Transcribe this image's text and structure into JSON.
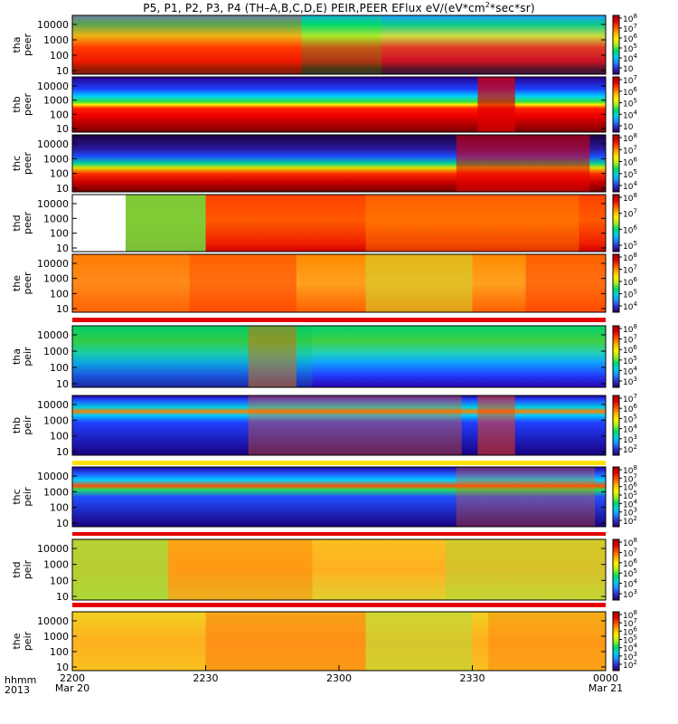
{
  "title": {
    "main": "P5, P1, P2, P3, P4 (TH–A,B,C,D,E) PEIR,PEER EFlux eV/(eV*cm",
    "sup": "2",
    "end": "*sec*sr)"
  },
  "time_axis": {
    "row1_label": "hhmm",
    "row2_label": "2013",
    "ticks": [
      {
        "label": "2200",
        "date": "Mar 20",
        "frac": 0.0
      },
      {
        "label": "2230",
        "date": "",
        "frac": 0.25
      },
      {
        "label": "2300",
        "date": "",
        "frac": 0.5
      },
      {
        "label": "2330",
        "date": "",
        "frac": 0.75
      },
      {
        "label": "0000",
        "date": "Mar 21",
        "frac": 1.0
      }
    ]
  },
  "chart_data": [
    {
      "type": "heatmap",
      "probe": "tha",
      "product": "peer",
      "ylabel": [
        "tha",
        "peer"
      ],
      "yticks": [
        "10000",
        "1000",
        "100",
        "10"
      ],
      "cbar_ticks": [
        "10",
        "10",
        "10",
        "10",
        "10",
        "10"
      ],
      "cbar_exps": [
        "8",
        "7",
        "6",
        "5",
        "4",
        ""
      ],
      "style": "tha_peer"
    },
    {
      "type": "heatmap",
      "probe": "thb",
      "product": "peer",
      "ylabel": [
        "thb",
        "peer"
      ],
      "yticks": [
        "10000",
        "1000",
        "100",
        "10"
      ],
      "cbar_ticks": [
        "10",
        "10",
        "10",
        "10",
        "10"
      ],
      "cbar_exps": [
        "7",
        "6",
        "5",
        "4",
        ""
      ],
      "style": "thb_peer"
    },
    {
      "type": "heatmap",
      "probe": "thc",
      "product": "peer",
      "ylabel": [
        "thc",
        "peer"
      ],
      "yticks": [
        "10000",
        "1000",
        "100",
        "10"
      ],
      "cbar_ticks": [
        "10",
        "10",
        "10",
        "10",
        "10"
      ],
      "cbar_exps": [
        "8",
        "7",
        "6",
        "5",
        "4"
      ],
      "style": "thc_peer"
    },
    {
      "type": "heatmap",
      "probe": "thd",
      "product": "peer",
      "ylabel": [
        "thd",
        "peer"
      ],
      "yticks": [
        "10000",
        "1000",
        "100",
        "10"
      ],
      "cbar_ticks": [
        "10",
        "10",
        "10",
        "10"
      ],
      "cbar_exps": [
        "8",
        "7",
        "6",
        "5"
      ],
      "style": "thd_peer"
    },
    {
      "type": "heatmap",
      "probe": "the",
      "product": "peer",
      "ylabel": [
        "the",
        "peer"
      ],
      "yticks": [
        "10000",
        "1000",
        "100",
        "10"
      ],
      "cbar_ticks": [
        "10",
        "10",
        "10",
        "10",
        "10"
      ],
      "cbar_exps": [
        "8",
        "7",
        "6",
        "5",
        "4"
      ],
      "style": "the_peer"
    },
    {
      "type": "heatmap",
      "probe": "tha",
      "product": "peir",
      "ylabel": [
        "tha",
        "peir"
      ],
      "yticks": [
        "10000",
        "1000",
        "100",
        "10"
      ],
      "cbar_ticks": [
        "10",
        "10",
        "10",
        "10",
        "10",
        "10"
      ],
      "cbar_exps": [
        "8",
        "7",
        "6",
        "5",
        "4",
        "3"
      ],
      "style": "tha_peir"
    },
    {
      "type": "heatmap",
      "probe": "thb",
      "product": "peir",
      "ylabel": [
        "thb",
        "peir"
      ],
      "yticks": [
        "10000",
        "1000",
        "100",
        "10"
      ],
      "cbar_ticks": [
        "10",
        "10",
        "10",
        "10",
        "10",
        "10"
      ],
      "cbar_exps": [
        "7",
        "6",
        "5",
        "4",
        "3",
        "2"
      ],
      "style": "thb_peir"
    },
    {
      "type": "heatmap",
      "probe": "thc",
      "product": "peir",
      "ylabel": [
        "thc",
        "peir"
      ],
      "yticks": [
        "10000",
        "1000",
        "100",
        "10"
      ],
      "cbar_ticks": [
        "10",
        "10",
        "10",
        "10",
        "10",
        "10",
        "10"
      ],
      "cbar_exps": [
        "8",
        "7",
        "6",
        "5",
        "4",
        "3",
        "2"
      ],
      "style": "thc_peir"
    },
    {
      "type": "heatmap",
      "probe": "thd",
      "product": "peir",
      "ylabel": [
        "thd",
        "peir"
      ],
      "yticks": [
        "10000",
        "1000",
        "100",
        "10"
      ],
      "cbar_ticks": [
        "10",
        "10",
        "10",
        "10",
        "10",
        "10"
      ],
      "cbar_exps": [
        "8",
        "7",
        "6",
        "5",
        "4",
        "3"
      ],
      "style": "thd_peir"
    },
    {
      "type": "heatmap",
      "probe": "the",
      "product": "peir",
      "ylabel": [
        "the",
        "peir"
      ],
      "yticks": [
        "10000",
        "1000",
        "100",
        "10"
      ],
      "cbar_ticks": [
        "10",
        "10",
        "10",
        "10",
        "10",
        "10",
        "10"
      ],
      "cbar_exps": [
        "8",
        "7",
        "6",
        "5",
        "4",
        "3",
        "2"
      ],
      "style": "the_peir"
    }
  ],
  "colors": {
    "colormap": [
      "#2a0060",
      "#2b2fc8",
      "#1f8bff",
      "#00d0e8",
      "#00dc60",
      "#a8ec20",
      "#fff000",
      "#ffb000",
      "#ff5000",
      "#e00000",
      "#a00000"
    ],
    "frame": "#000000",
    "gap_red": "#e40000",
    "gap_yellow": "#ffe000"
  }
}
